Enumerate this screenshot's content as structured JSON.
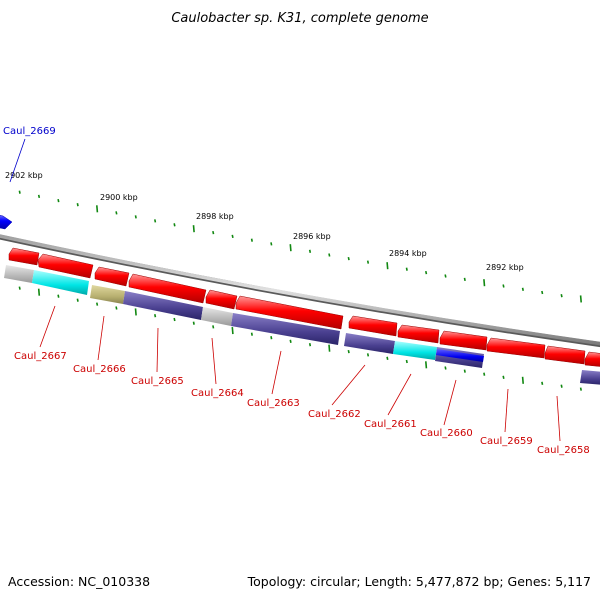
{
  "title": "Caulobacter sp. K31, complete genome",
  "accession": "Accession: NC_010338",
  "topology": "Topology: circular; Length: 5,477,872 bp; Genes: 5,117",
  "scale_labels": [
    {
      "id": "kbp-2902",
      "text": "2902 kbp"
    },
    {
      "id": "kbp-2900",
      "text": "2900 kbp"
    },
    {
      "id": "kbp-2898",
      "text": "2898 kbp"
    },
    {
      "id": "kbp-2896",
      "text": "2896 kbp"
    },
    {
      "id": "kbp-2894",
      "text": "2894 kbp"
    },
    {
      "id": "kbp-2892",
      "text": "2892 kbp"
    }
  ],
  "genes": [
    {
      "id": "caul-2669",
      "text": "Caul_2669",
      "color": "#0000cc"
    },
    {
      "id": "caul-2667",
      "text": "Caul_2667",
      "color": "#cc0000"
    },
    {
      "id": "caul-2666",
      "text": "Caul_2666",
      "color": "#cc0000"
    },
    {
      "id": "caul-2665",
      "text": "Caul_2665",
      "color": "#cc0000"
    },
    {
      "id": "caul-2664",
      "text": "Caul_2664",
      "color": "#cc0000"
    },
    {
      "id": "caul-2663",
      "text": "Caul_2663",
      "color": "#cc0000"
    },
    {
      "id": "caul-2662",
      "text": "Caul_2662",
      "color": "#cc0000"
    },
    {
      "id": "caul-2661",
      "text": "Caul_2661",
      "color": "#cc0000"
    },
    {
      "id": "caul-2660",
      "text": "Caul_2660",
      "color": "#cc0000"
    },
    {
      "id": "caul-2659",
      "text": "Caul_2659",
      "color": "#cc0000"
    },
    {
      "id": "caul-2658",
      "text": "Caul_2658",
      "color": "#cc0000"
    }
  ],
  "colors": {
    "cds": "#ff0000",
    "cds_blue": "#0000ff",
    "backbone": "#808080",
    "tick": "#118811",
    "cog_gray": "#b8b8b8",
    "cog_cyan": "#00e5e5",
    "cog_olive": "#b8b070",
    "cog_navy": "#4a4090",
    "cog_blue": "#0000ee"
  }
}
